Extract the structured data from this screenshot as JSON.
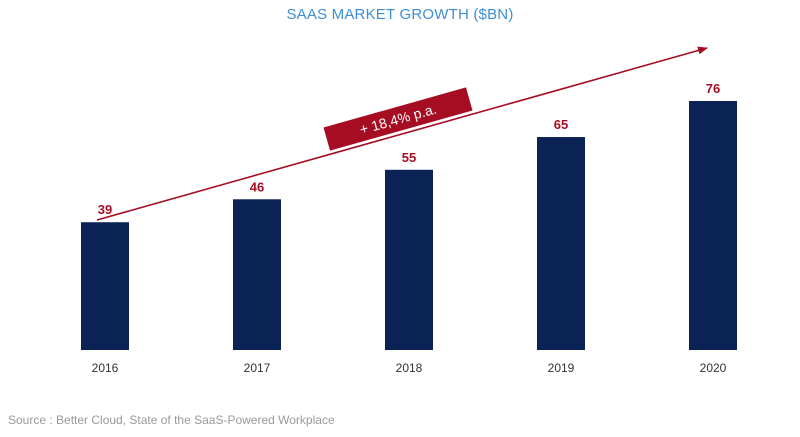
{
  "chart_data": {
    "type": "bar",
    "title": "SAAS MARKET GROWTH ($BN)",
    "categories": [
      "2016",
      "2017",
      "2018",
      "2019",
      "2020"
    ],
    "values": [
      39,
      46,
      55,
      65,
      76
    ],
    "xlabel": "",
    "ylabel": "",
    "ylim": [
      0,
      76
    ],
    "grid": false,
    "annotation": "+ 18,4% p.a.",
    "bar_color": "#0b2254",
    "value_label_color": "#a60d23",
    "annotation_color": "#a60d23"
  },
  "source": "Source : Better Cloud, State of the SaaS-Powered Workplace"
}
